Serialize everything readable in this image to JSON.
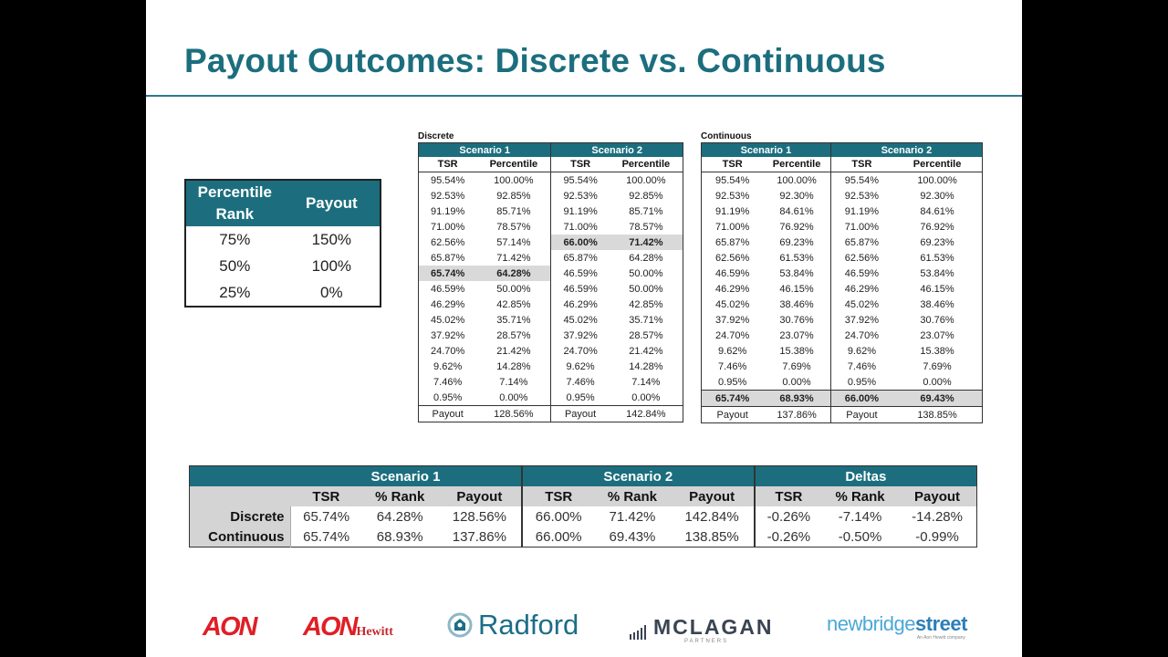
{
  "title": "Payout Outcomes: Discrete vs. Continuous",
  "payout_table": {
    "headers": [
      "Percentile Rank",
      "Payout"
    ],
    "rows": [
      [
        "75%",
        "150%"
      ],
      [
        "50%",
        "100%"
      ],
      [
        "25%",
        "0%"
      ]
    ]
  },
  "discrete": {
    "label": "Discrete",
    "scenarios": [
      "Scenario 1",
      "Scenario 2"
    ],
    "cols": [
      "TSR",
      "Percentile",
      "TSR",
      "Percentile"
    ],
    "rows": [
      [
        "95.54%",
        "100.00%",
        "95.54%",
        "100.00%"
      ],
      [
        "92.53%",
        "92.85%",
        "92.53%",
        "92.85%"
      ],
      [
        "91.19%",
        "85.71%",
        "91.19%",
        "85.71%"
      ],
      [
        "71.00%",
        "78.57%",
        "71.00%",
        "78.57%"
      ],
      [
        "62.56%",
        "57.14%",
        "66.00%",
        "71.42%"
      ],
      [
        "65.87%",
        "71.42%",
        "65.87%",
        "64.28%"
      ],
      [
        "65.74%",
        "64.28%",
        "46.59%",
        "50.00%"
      ],
      [
        "46.59%",
        "50.00%",
        "46.59%",
        "50.00%"
      ],
      [
        "46.29%",
        "42.85%",
        "46.29%",
        "42.85%"
      ],
      [
        "45.02%",
        "35.71%",
        "45.02%",
        "35.71%"
      ],
      [
        "37.92%",
        "28.57%",
        "37.92%",
        "28.57%"
      ],
      [
        "24.70%",
        "21.42%",
        "24.70%",
        "21.42%"
      ],
      [
        "9.62%",
        "14.28%",
        "9.62%",
        "14.28%"
      ],
      [
        "7.46%",
        "7.14%",
        "7.46%",
        "7.14%"
      ],
      [
        "0.95%",
        "0.00%",
        "0.95%",
        "0.00%"
      ]
    ],
    "payout_row": [
      "Payout",
      "128.56%",
      "Payout",
      "142.84%"
    ]
  },
  "continuous": {
    "label": "Continuous",
    "scenarios": [
      "Scenario 1",
      "Scenario 2"
    ],
    "cols": [
      "TSR",
      "Percentile",
      "TSR",
      "Percentile"
    ],
    "rows": [
      [
        "95.54%",
        "100.00%",
        "95.54%",
        "100.00%"
      ],
      [
        "92.53%",
        "92.30%",
        "92.53%",
        "92.30%"
      ],
      [
        "91.19%",
        "84.61%",
        "91.19%",
        "84.61%"
      ],
      [
        "71.00%",
        "76.92%",
        "71.00%",
        "76.92%"
      ],
      [
        "65.87%",
        "69.23%",
        "65.87%",
        "69.23%"
      ],
      [
        "62.56%",
        "61.53%",
        "62.56%",
        "61.53%"
      ],
      [
        "46.59%",
        "53.84%",
        "46.59%",
        "53.84%"
      ],
      [
        "46.29%",
        "46.15%",
        "46.29%",
        "46.15%"
      ],
      [
        "45.02%",
        "38.46%",
        "45.02%",
        "38.46%"
      ],
      [
        "37.92%",
        "30.76%",
        "37.92%",
        "30.76%"
      ],
      [
        "24.70%",
        "23.07%",
        "24.70%",
        "23.07%"
      ],
      [
        "9.62%",
        "15.38%",
        "9.62%",
        "15.38%"
      ],
      [
        "7.46%",
        "7.69%",
        "7.46%",
        "7.69%"
      ],
      [
        "0.95%",
        "0.00%",
        "0.95%",
        "0.00%"
      ]
    ],
    "highlight_row": [
      "65.74%",
      "68.93%",
      "66.00%",
      "69.43%"
    ],
    "payout_row": [
      "Payout",
      "137.86%",
      "Payout",
      "138.85%"
    ]
  },
  "summary": {
    "groups": [
      "Scenario 1",
      "Scenario 2",
      "Deltas"
    ],
    "subheaders": [
      "TSR",
      "% Rank",
      "Payout",
      "TSR",
      "% Rank",
      "Payout",
      "TSR",
      "% Rank",
      "Payout"
    ],
    "rows": [
      {
        "label": "Discrete",
        "values": [
          "65.74%",
          "64.28%",
          "128.56%",
          "66.00%",
          "71.42%",
          "142.84%",
          "-0.26%",
          "-7.14%",
          "-14.28%"
        ]
      },
      {
        "label": "Continuous",
        "values": [
          "65.74%",
          "68.93%",
          "137.86%",
          "66.00%",
          "69.43%",
          "138.85%",
          "-0.26%",
          "-0.50%",
          "-0.99%"
        ]
      }
    ]
  },
  "logos": {
    "aon": "AON",
    "aon_hewitt_a": "AON",
    "aon_hewitt_h": "Hewitt",
    "radford": "Radford",
    "mclagan": "MCLAGAN",
    "mclagan_sub": "PARTNERS",
    "nbs_a": "newbridge",
    "nbs_b": "street",
    "nbs_sub": "An Aon Hewitt company",
    "brand_red": "#e01f26",
    "brand_teal": "#1c6e7e"
  }
}
